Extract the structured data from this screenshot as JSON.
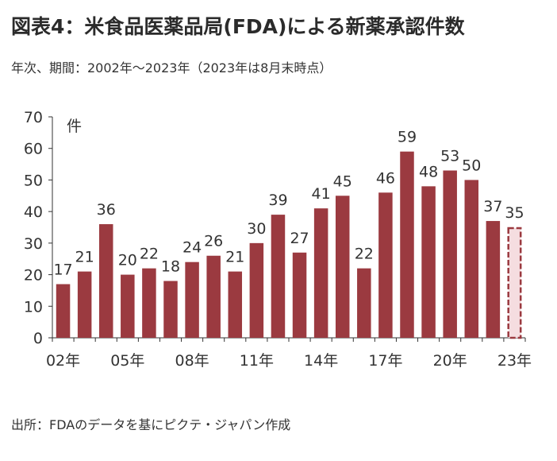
{
  "header": {
    "title": "図表4：米食品医薬品局(FDA)による新薬承認件数",
    "subtitle": "年次、期間：2002年～2023年（2023年は8月末時点）"
  },
  "footer": {
    "source": "出所：FDAのデータを基にピクテ・ジャパン作成"
  },
  "chart_data": {
    "type": "bar",
    "title": "図表4：米食品医薬品局(FDA)による新薬承認件数",
    "subtitle": "年次、期間：2002年～2023年（2023年は8月末時点）",
    "unit_label": "件",
    "ylim": [
      0,
      70
    ],
    "yticks": [
      0,
      10,
      20,
      30,
      40,
      50,
      60,
      70
    ],
    "grid": false,
    "categories": [
      "2002",
      "2003",
      "2004",
      "2005",
      "2006",
      "2007",
      "2008",
      "2009",
      "2010",
      "2011",
      "2012",
      "2013",
      "2014",
      "2015",
      "2016",
      "2017",
      "2018",
      "2019",
      "2020",
      "2021",
      "2022",
      "2023"
    ],
    "xtick_labels": [
      {
        "index": 0,
        "label": "02年"
      },
      {
        "index": 3,
        "label": "05年"
      },
      {
        "index": 6,
        "label": "08年"
      },
      {
        "index": 9,
        "label": "11年"
      },
      {
        "index": 12,
        "label": "14年"
      },
      {
        "index": 15,
        "label": "17年"
      },
      {
        "index": 18,
        "label": "20年"
      },
      {
        "index": 21,
        "label": "23年"
      }
    ],
    "values": [
      17,
      21,
      36,
      20,
      22,
      18,
      24,
      26,
      21,
      30,
      39,
      27,
      41,
      45,
      22,
      46,
      59,
      48,
      53,
      50,
      37,
      35
    ],
    "partial_last": true,
    "colors": {
      "bar": "#9b3a40",
      "partial_fill": "#f5dde0",
      "partial_stroke": "#9b3a40",
      "text": "#333333",
      "axis": "#333333"
    }
  }
}
